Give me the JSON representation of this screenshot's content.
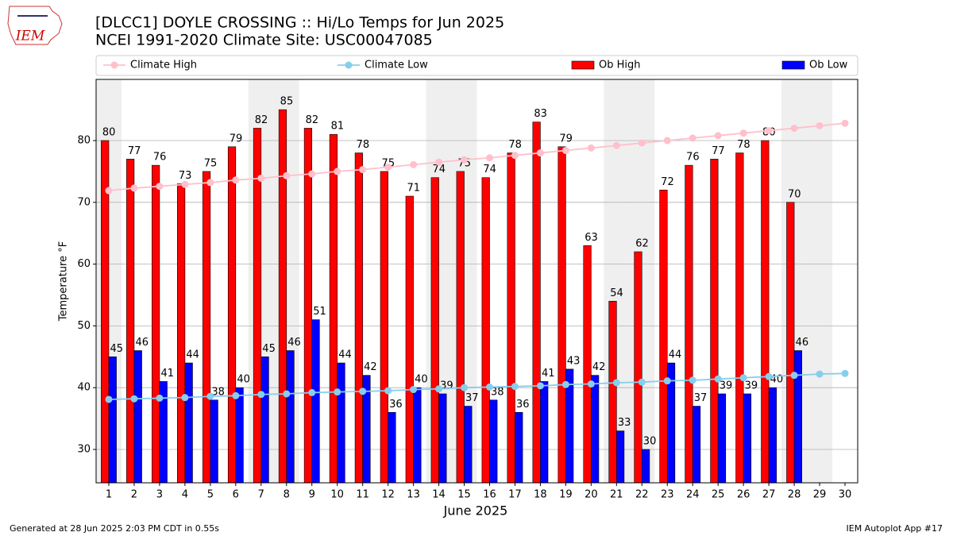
{
  "logo_text": "IEM",
  "footer_left": "Generated at 28 Jun 2025 2:03 PM CDT in 0.55s",
  "footer_right": "IEM Autoplot App #17",
  "chart_data": {
    "type": "bar",
    "title": "[DLCC1] DOYLE CROSSING :: Hi/Lo Temps for Jun 2025",
    "subtitle": "NCEI 1991-2020 Climate Site: USC00047085",
    "x_label": "June 2025",
    "y_label": "Temperature °F",
    "x": [
      1,
      2,
      3,
      4,
      5,
      6,
      7,
      8,
      9,
      10,
      11,
      12,
      13,
      14,
      15,
      16,
      17,
      18,
      19,
      20,
      21,
      22,
      23,
      24,
      25,
      26,
      27,
      28,
      29,
      30
    ],
    "xlim": [
      0.5,
      30.5
    ],
    "ylim": [
      24.6,
      89.9
    ],
    "yticks": [
      30,
      40,
      50,
      60,
      70,
      80
    ],
    "grid": true,
    "shaded_days": [
      1,
      7,
      8,
      14,
      15,
      21,
      22,
      28,
      29
    ],
    "shade_color": "#efefef",
    "series": [
      {
        "name": "Climate High",
        "type": "line",
        "color": "#ffc0cb",
        "values": [
          71.9,
          72.3,
          72.6,
          72.9,
          73.2,
          73.6,
          73.9,
          74.3,
          74.6,
          75.0,
          75.3,
          75.7,
          76.1,
          76.5,
          76.9,
          77.2,
          77.6,
          78.0,
          78.4,
          78.8,
          79.2,
          79.6,
          80.0,
          80.4,
          80.8,
          81.2,
          81.6,
          82.0,
          82.4,
          82.8
        ]
      },
      {
        "name": "Climate Low",
        "type": "line",
        "color": "#87ceeb",
        "values": [
          38.1,
          38.2,
          38.3,
          38.4,
          38.6,
          38.7,
          38.9,
          39.0,
          39.2,
          39.3,
          39.4,
          39.5,
          39.7,
          39.8,
          40.0,
          40.1,
          40.2,
          40.3,
          40.5,
          40.6,
          40.8,
          40.9,
          41.1,
          41.2,
          41.4,
          41.6,
          41.8,
          42.0,
          42.2,
          42.3
        ]
      },
      {
        "name": "Ob High",
        "type": "bar",
        "color": "#ff0000",
        "values": [
          80,
          77,
          76,
          73,
          75,
          79,
          82,
          85,
          82,
          81,
          78,
          75,
          71,
          74,
          75,
          74,
          78,
          83,
          79,
          63,
          54,
          62,
          72,
          76,
          77,
          78,
          80,
          70,
          null,
          null
        ]
      },
      {
        "name": "Ob Low",
        "type": "bar",
        "color": "#0000ff",
        "values": [
          45,
          46,
          41,
          44,
          38,
          40,
          45,
          46,
          51,
          44,
          42,
          36,
          40,
          39,
          37,
          38,
          36,
          41,
          43,
          42,
          33,
          30,
          44,
          37,
          39,
          39,
          40,
          46,
          null,
          null
        ]
      }
    ]
  }
}
